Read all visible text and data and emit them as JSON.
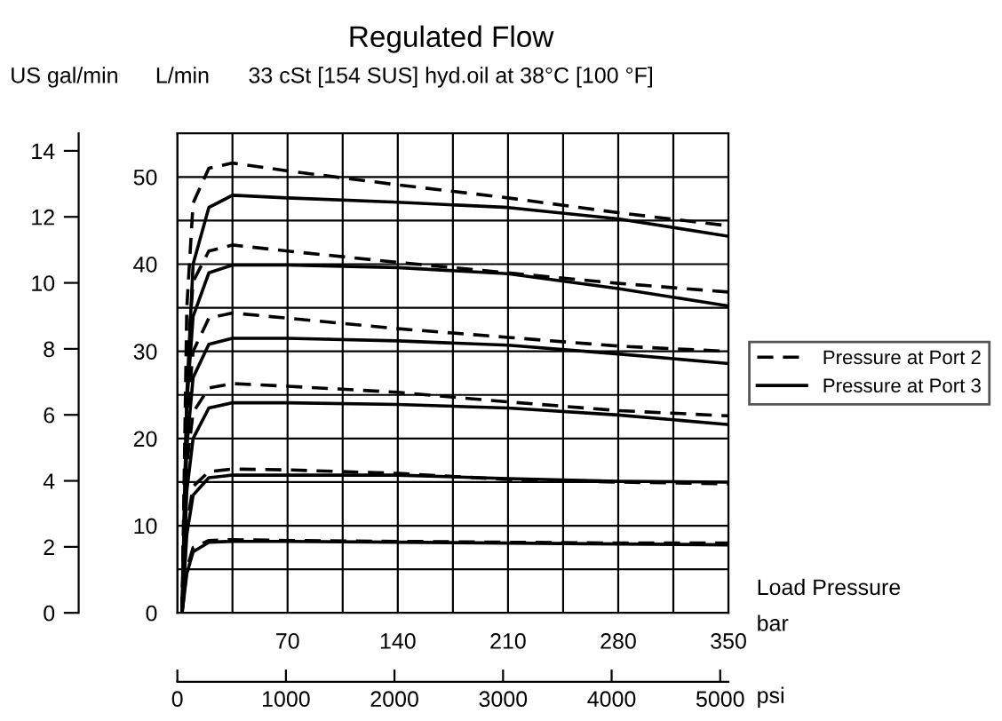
{
  "chart_data": {
    "type": "line",
    "title": "Regulated Flow",
    "subtitle": "33 cSt [154 SUS] hyd.oil at 38°C [100 °F]",
    "ylabel": "L/min",
    "y2label": "US gal/min",
    "xlabel": "bar",
    "x2label": "psi",
    "annotations": [
      "Load Pressure"
    ],
    "x": [
      3,
      6,
      10,
      20,
      35,
      70,
      140,
      210,
      280,
      350
    ],
    "series": [
      {
        "name": "Pressure at Port 2",
        "color": "#000000",
        "line_style": "dashed",
        "values": [
          0,
          35,
          47,
          51,
          51.6,
          50.7,
          49.1,
          47.6,
          45.9,
          44.4
        ]
      },
      {
        "name": "Pressure at Port 3",
        "color": "#000000",
        "line_style": "solid",
        "values": [
          0,
          25,
          40,
          46.5,
          47.9,
          47.6,
          47.1,
          46.5,
          45.2,
          43.2
        ]
      },
      {
        "color": "#000000",
        "line_style": "dashed",
        "values": [
          0,
          28,
          38,
          41.5,
          42.2,
          41.5,
          40.2,
          39.0,
          37.8,
          36.8
        ]
      },
      {
        "color": "#000000",
        "line_style": "solid",
        "values": [
          0,
          24,
          34,
          39,
          39.9,
          39.9,
          39.6,
          38.9,
          37.2,
          35.2
        ]
      },
      {
        "color": "#000000",
        "line_style": "dashed",
        "values": [
          0,
          22,
          30,
          33.8,
          34.4,
          33.8,
          32.6,
          31.6,
          30.6,
          30.0
        ]
      },
      {
        "color": "#000000",
        "line_style": "solid",
        "values": [
          0,
          19,
          27,
          30.8,
          31.5,
          31.5,
          31.2,
          30.7,
          29.7,
          28.6
        ]
      },
      {
        "color": "#000000",
        "line_style": "dashed",
        "values": [
          0,
          17,
          23,
          25.8,
          26.3,
          26.0,
          25.3,
          24.2,
          23.2,
          22.6
        ]
      },
      {
        "color": "#000000",
        "line_style": "solid",
        "values": [
          0,
          14,
          20,
          23.5,
          24.1,
          24.1,
          23.9,
          23.5,
          22.7,
          21.6
        ]
      },
      {
        "color": "#000000",
        "line_style": "dashed",
        "values": [
          0,
          10,
          14.5,
          16.2,
          16.5,
          16.4,
          16.0,
          15.3,
          15.0,
          14.8
        ]
      },
      {
        "color": "#000000",
        "line_style": "solid",
        "values": [
          0,
          9,
          13.5,
          15.5,
          15.8,
          15.8,
          15.8,
          15.4,
          15.1,
          15.0
        ]
      },
      {
        "color": "#000000",
        "line_style": "dashed",
        "values": [
          0,
          5,
          7.5,
          8.3,
          8.4,
          8.3,
          8.2,
          8.1,
          8.0,
          8.0
        ]
      },
      {
        "color": "#000000",
        "line_style": "solid",
        "values": [
          0,
          4.5,
          7,
          8.1,
          8.2,
          8.2,
          8.1,
          8.0,
          7.9,
          7.8
        ]
      }
    ],
    "xlim": [
      0,
      350
    ],
    "xticks": [
      {
        "value": 0,
        "label": null
      },
      {
        "value": 35,
        "label": null
      },
      70,
      {
        "value": 105,
        "label": null
      },
      140,
      {
        "value": 175,
        "label": null
      },
      210,
      {
        "value": 245,
        "label": null
      },
      280,
      {
        "value": 315,
        "label": null
      },
      350
    ],
    "ylim": [
      0,
      55
    ],
    "yticks": [
      0,
      {
        "value": 5,
        "label": null
      },
      10,
      {
        "value": 15,
        "label": null
      },
      20,
      {
        "value": 25,
        "label": null
      },
      30,
      {
        "value": 35,
        "label": null
      },
      40,
      {
        "value": 45,
        "label": null
      },
      50
    ],
    "y2lim": [
      0,
      14.53
    ],
    "y2ticks": [
      0,
      2,
      4,
      6,
      8,
      10,
      12,
      14
    ],
    "x2lim": [
      0,
      5076
    ],
    "x2ticks": [
      0,
      1000,
      2000,
      3000,
      4000,
      5000
    ],
    "grid": true,
    "legend": "right",
    "marker": "none"
  }
}
